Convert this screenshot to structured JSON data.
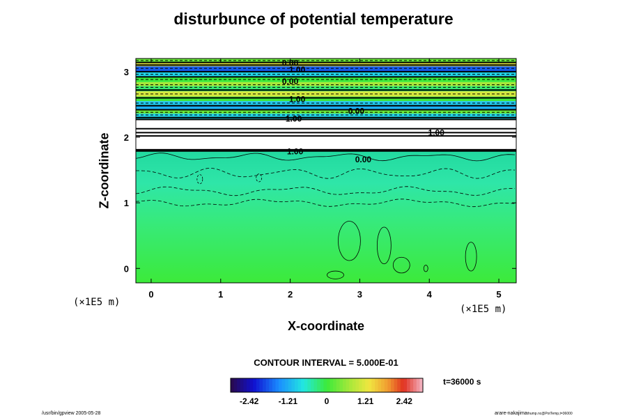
{
  "chart_data": {
    "type": "heatmap",
    "title": "disturbunce of potential temperature",
    "xlabel": "X-coordinate",
    "ylabel": "Z-coordinate",
    "x_unit": "(×1E5 m)",
    "xlim": [
      -0.22,
      5.25
    ],
    "ylim": [
      -0.22,
      3.2
    ],
    "x_ticks": [
      0,
      1,
      2,
      3,
      4,
      5
    ],
    "y_ticks": [
      0,
      1,
      2,
      3
    ],
    "x_tick_labels": [
      "0",
      "1",
      "2",
      "3",
      "4",
      "5"
    ],
    "y_tick_labels": [
      "0",
      "1",
      "2",
      "3"
    ],
    "grid": false,
    "contour_interval_text": "CONTOUR INTERVAL = 5.000E-01",
    "contour_labels": [
      {
        "text": "0.00",
        "x": 2.0,
        "y": 3.13
      },
      {
        "text": "1.00",
        "x": 2.1,
        "y": 3.03
      },
      {
        "text": "0.00",
        "x": 2.0,
        "y": 2.85
      },
      {
        "text": "1.00",
        "x": 2.1,
        "y": 2.58
      },
      {
        "text": "0.00",
        "x": 2.95,
        "y": 2.4
      },
      {
        "text": "1.00",
        "x": 2.05,
        "y": 2.28
      },
      {
        "text": "1.00",
        "x": 4.1,
        "y": 2.07
      },
      {
        "text": "1.00",
        "x": 2.07,
        "y": 1.78
      },
      {
        "text": "0.00",
        "x": 3.05,
        "y": 1.66
      }
    ],
    "colorbar": {
      "ticks": [
        -2.42,
        -1.21,
        0,
        1.21,
        2.42
      ],
      "tick_labels": [
        "-2.42",
        "-1.21",
        "0",
        "1.21",
        "2.42"
      ],
      "range": [
        -3.0,
        3.0
      ]
    },
    "time_label": "t=36000 s"
  },
  "footer": {
    "left": "/usr/bin/gpview 2005-05-28",
    "right_main": "arare-nakajima",
    "right_small": "thump.nc@PotTemp,t=36000"
  }
}
